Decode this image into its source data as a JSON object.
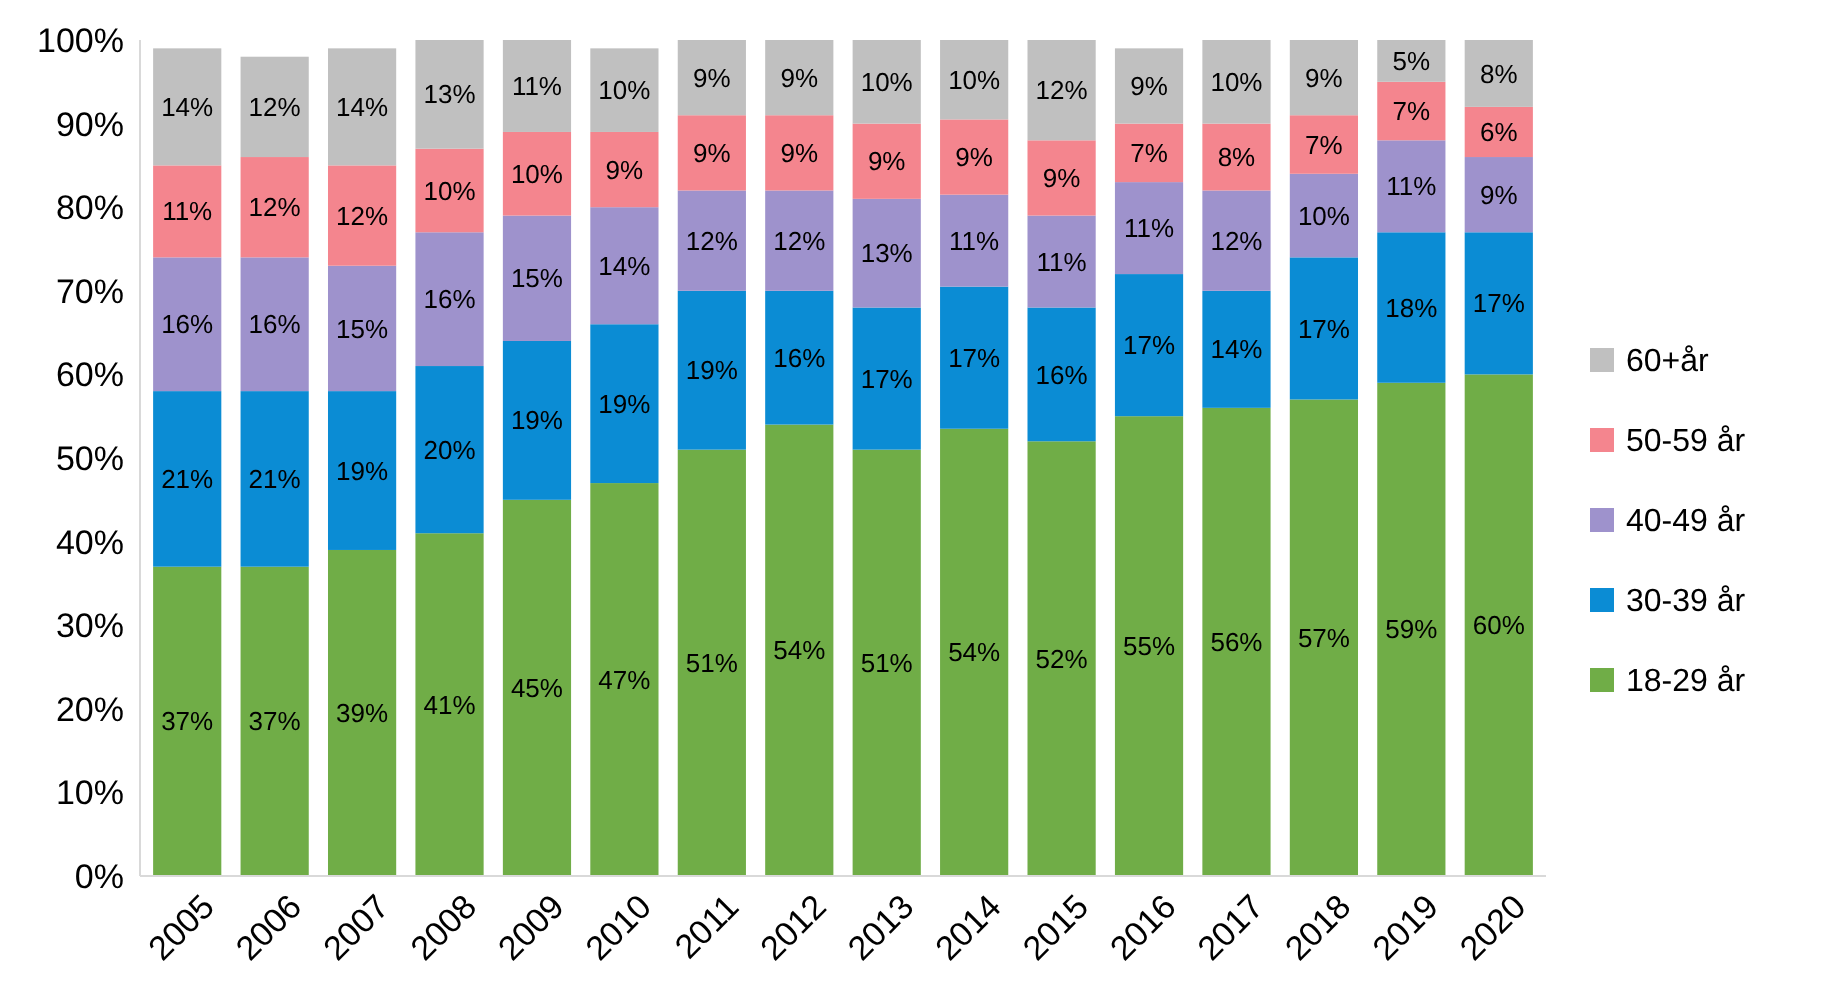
{
  "chart_data": {
    "type": "bar",
    "stacked": true,
    "categories": [
      "2005",
      "2006",
      "2007",
      "2008",
      "2009",
      "2010",
      "2011",
      "2012",
      "2013",
      "2014",
      "2015",
      "2016",
      "2017",
      "2018",
      "2019",
      "2020"
    ],
    "ylim": [
      0,
      100
    ],
    "yticks": [
      {
        "value": 0,
        "label": "0%"
      },
      {
        "value": 10,
        "label": "10%"
      },
      {
        "value": 20,
        "label": "20%"
      },
      {
        "value": 30,
        "label": "30%"
      },
      {
        "value": 40,
        "label": "40%"
      },
      {
        "value": 50,
        "label": "50%"
      },
      {
        "value": 60,
        "label": "60%"
      },
      {
        "value": 70,
        "label": "70%"
      },
      {
        "value": 80,
        "label": "80%"
      },
      {
        "value": 90,
        "label": "90%"
      },
      {
        "value": 100,
        "label": "100%"
      }
    ],
    "legend": "right",
    "series": [
      {
        "name": "18-29 år",
        "color": "#70ad47",
        "values": [
          37,
          37,
          39,
          41,
          45,
          47,
          51,
          54,
          51,
          53.5,
          52,
          55,
          56,
          57,
          59,
          60
        ],
        "value_labels": [
          "37%",
          "37%",
          "39%",
          "41%",
          "45%",
          "47%",
          "51%",
          "54%",
          "51%",
          "54%",
          "52%",
          "55%",
          "56%",
          "57%",
          "59%",
          "60%"
        ]
      },
      {
        "name": "30-39 år",
        "color": "#0b8cd4",
        "values": [
          21,
          21,
          19,
          20,
          19,
          19,
          19,
          16,
          17,
          17,
          16,
          17,
          14,
          17,
          18,
          17
        ],
        "value_labels": [
          "21%",
          "21%",
          "19%",
          "20%",
          "19%",
          "19%",
          "19%",
          "16%",
          "17%",
          "17%",
          "16%",
          "17%",
          "14%",
          "17%",
          "18%",
          "17%"
        ]
      },
      {
        "name": "40-49 år",
        "color": "#9e92cc",
        "values": [
          16,
          16,
          15,
          16,
          15,
          14,
          12,
          12,
          13,
          11,
          11,
          11,
          12,
          10,
          11,
          9
        ],
        "value_labels": [
          "16%",
          "16%",
          "15%",
          "16%",
          "15%",
          "14%",
          "12%",
          "12%",
          "13%",
          "11%",
          "11%",
          "11%",
          "12%",
          "10%",
          "11%",
          "9%"
        ]
      },
      {
        "name": "50-59 år",
        "color": "#f4858e",
        "values": [
          11,
          12,
          12,
          10,
          10,
          9,
          9,
          9,
          9,
          9,
          9,
          7,
          8,
          7,
          7,
          6
        ],
        "value_labels": [
          "11%",
          "12%",
          "12%",
          "10%",
          "10%",
          "9%",
          "9%",
          "9%",
          "9%",
          "9%",
          "9%",
          "7%",
          "8%",
          "7%",
          "7%",
          "6%"
        ]
      },
      {
        "name": "60+år",
        "color": "#c0c0c0",
        "values": [
          14,
          12,
          14,
          13,
          11,
          10,
          9,
          9,
          10,
          9.5,
          12,
          9,
          10,
          9,
          5,
          8
        ],
        "value_labels": [
          "14%",
          "12%",
          "14%",
          "13%",
          "11%",
          "10%",
          "9%",
          "9%",
          "10%",
          "10%",
          "12%",
          "9%",
          "10%",
          "9%",
          "5%",
          "8%"
        ]
      }
    ]
  }
}
